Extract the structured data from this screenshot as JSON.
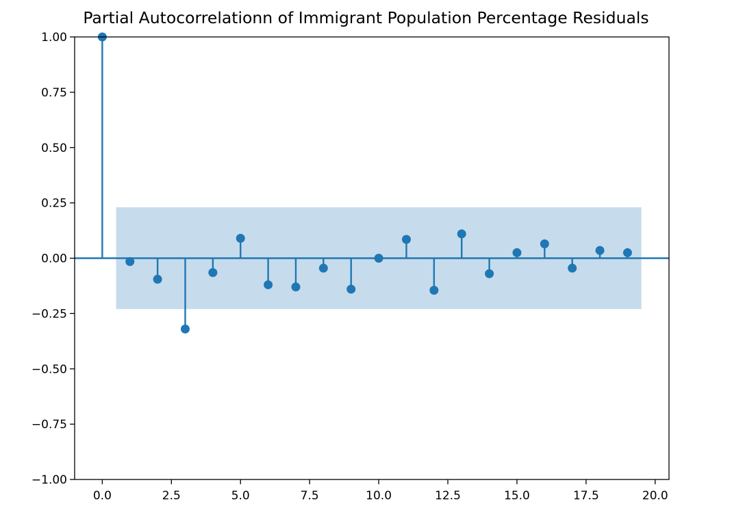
{
  "chart_data": {
    "type": "stem",
    "title": "Partial Autocorrelationn of Immigrant Population Percentage Residuals",
    "xlabel": "",
    "ylabel": "",
    "xlim": [
      -1,
      20.5
    ],
    "ylim": [
      -1.0,
      1.0
    ],
    "x_ticks": [
      0.0,
      2.5,
      5.0,
      7.5,
      10.0,
      12.5,
      15.0,
      17.5,
      20.0
    ],
    "x_tick_labels": [
      "0.0",
      "2.5",
      "5.0",
      "7.5",
      "10.0",
      "12.5",
      "15.0",
      "17.5",
      "20.0"
    ],
    "y_ticks": [
      -1.0,
      -0.75,
      -0.5,
      -0.25,
      0.0,
      0.25,
      0.5,
      0.75,
      1.0
    ],
    "y_tick_labels": [
      "−1.00",
      "−0.75",
      "−0.50",
      "−0.25",
      "0.00",
      "0.25",
      "0.50",
      "0.75",
      "1.00"
    ],
    "lags": [
      0,
      1,
      2,
      3,
      4,
      5,
      6,
      7,
      8,
      9,
      10,
      11,
      12,
      13,
      14,
      15,
      16,
      17,
      18,
      19
    ],
    "values": [
      1.0,
      -0.015,
      -0.095,
      -0.32,
      -0.065,
      0.09,
      -0.12,
      -0.13,
      -0.045,
      -0.14,
      0.0,
      0.085,
      -0.145,
      0.11,
      -0.07,
      0.025,
      0.065,
      -0.045,
      0.035,
      0.025
    ],
    "confidence_band": {
      "x_range": [
        0.5,
        19.5
      ],
      "lower": -0.23,
      "upper": 0.23
    },
    "grid": false,
    "legend": "none",
    "colors": {
      "series": "#1f77b4",
      "band": "#c6dbec",
      "zero_line": "#1f77b4",
      "axes": "#000000"
    }
  }
}
